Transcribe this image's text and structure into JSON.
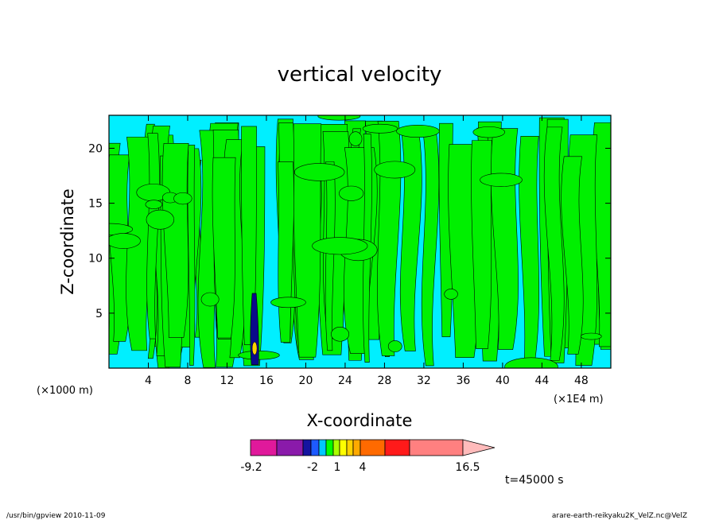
{
  "chart_data": {
    "type": "heatmap",
    "title": "vertical velocity",
    "xlabel": "X-coordinate",
    "ylabel": "Z-coordinate",
    "x_unit_note": "(×1000 m)",
    "x_scale_note": "(×1E4 m)",
    "xlim": [
      0,
      51
    ],
    "ylim": [
      0,
      23
    ],
    "x_ticks": [
      4,
      8,
      12,
      16,
      20,
      24,
      28,
      32,
      36,
      40,
      44,
      48
    ],
    "x_tick_labels": [
      "4",
      "8",
      "12",
      "16",
      "20",
      "24",
      "28",
      "32",
      "36",
      "40",
      "44",
      "48"
    ],
    "y_ticks": [
      5,
      10,
      15,
      20
    ],
    "y_tick_labels": [
      "5",
      "10",
      "15",
      "20"
    ],
    "colorbar": {
      "min_label": "-9.2",
      "max_label": "16.5",
      "labels": [
        "-9.2",
        "-2",
        "1",
        "4",
        "16.5"
      ],
      "colors": [
        "#e0199b",
        "#8a1aaa",
        "#1414a0",
        "#1e5aff",
        "#00c8ff",
        "#00ff00",
        "#aaff00",
        "#ffff00",
        "#ffd200",
        "#ffaa00",
        "#ff6a00",
        "#ff1a1a",
        "#ff8080"
      ],
      "arrow_color": "#ffbbbb"
    },
    "time_label": "t=45000 s",
    "field_colors": {
      "positive": "#00f000",
      "negative": "#00efff",
      "strong_down": "#0a0a8a",
      "strong_up": "#ffd200"
    },
    "grid": false
  },
  "footer": {
    "left": "/usr/bin/gpview   2010-11-09",
    "right": "arare-earth-reikyaku2K_VelZ.nc@VelZ"
  }
}
